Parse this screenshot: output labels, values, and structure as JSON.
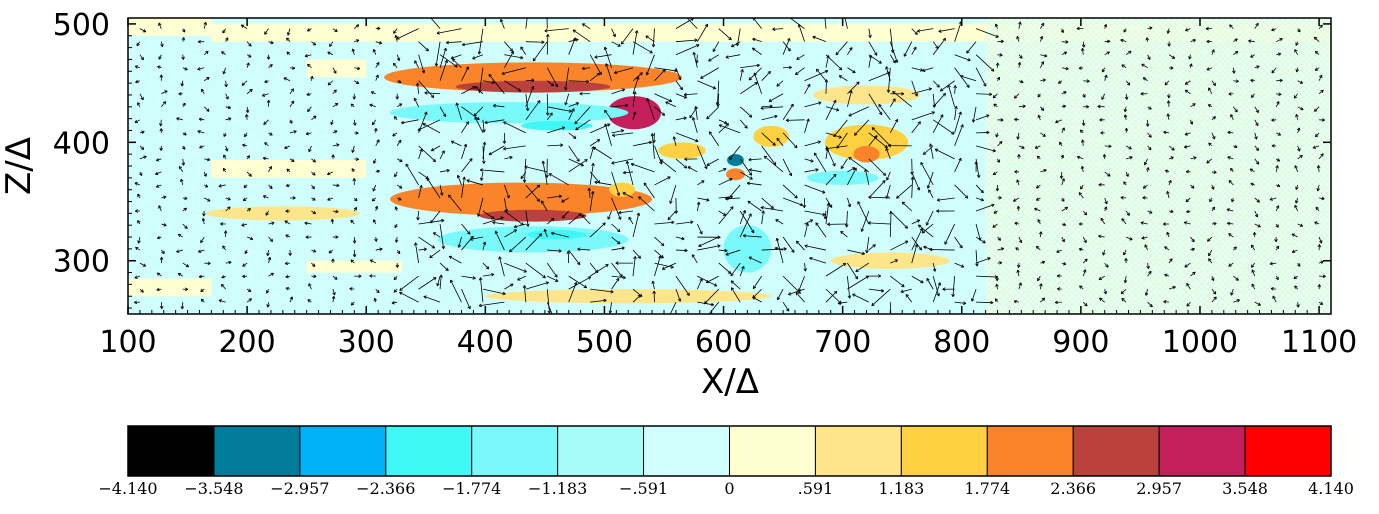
{
  "chart_data": {
    "type": "heatmap",
    "title": "",
    "xlabel": "X/Δ",
    "ylabel": "Z/Δ",
    "xlim": [
      100,
      1110
    ],
    "ylim": [
      255,
      505
    ],
    "xticks": [
      100,
      200,
      300,
      400,
      500,
      600,
      700,
      800,
      900,
      1000,
      1100
    ],
    "xtick_labels": [
      "100",
      "200",
      "300",
      "400",
      "500",
      "600",
      "700",
      "800",
      "900",
      "1000",
      "1100"
    ],
    "yticks": [
      300,
      400,
      500
    ],
    "ytick_labels": [
      "300",
      "400",
      "500"
    ],
    "overlay": "velocity vector field (arrows)",
    "colorbar": {
      "levels": [
        -4.14,
        -3.548,
        -2.957,
        -2.366,
        -1.774,
        -1.183,
        -0.591,
        0,
        0.591,
        1.183,
        1.774,
        2.366,
        2.957,
        3.548,
        4.14
      ],
      "labels": [
        "−4.140",
        "−3.548",
        "−2.957",
        "−2.366",
        "−1.774",
        "−1.183",
        "−.591",
        "0",
        ".591",
        "1.183",
        "1.774",
        "2.366",
        "2.957",
        "3.548",
        "4.140"
      ],
      "colors": [
        "#000000",
        "#007b99",
        "#00b2f7",
        "#3ff7f5",
        "#7af9fb",
        "#a6fbf9",
        "#d0fefd",
        "#fffdd2",
        "#fde58b",
        "#fed143",
        "#f9842a",
        "#ba413e",
        "#c41e5b",
        "#ff0000"
      ]
    },
    "features": [
      {
        "x": 440,
        "z": 455,
        "w": 250,
        "h": 25,
        "level": 10
      },
      {
        "x": 440,
        "z": 447,
        "w": 130,
        "h": 10,
        "level": 11
      },
      {
        "x": 525,
        "z": 425,
        "w": 45,
        "h": 28,
        "level": 12
      },
      {
        "x": 420,
        "z": 425,
        "w": 200,
        "h": 18,
        "level": 4
      },
      {
        "x": 460,
        "z": 414,
        "w": 60,
        "h": 8,
        "level": 3
      },
      {
        "x": 430,
        "z": 352,
        "w": 220,
        "h": 28,
        "level": 10
      },
      {
        "x": 440,
        "z": 338,
        "w": 90,
        "h": 10,
        "level": 11
      },
      {
        "x": 440,
        "z": 318,
        "w": 160,
        "h": 22,
        "level": 4
      },
      {
        "x": 460,
        "z": 322,
        "w": 50,
        "h": 8,
        "level": 3
      },
      {
        "x": 565,
        "z": 393,
        "w": 40,
        "h": 14,
        "level": 9
      },
      {
        "x": 515,
        "z": 360,
        "w": 22,
        "h": 12,
        "level": 9
      },
      {
        "x": 610,
        "z": 385,
        "w": 14,
        "h": 10,
        "level": 1
      },
      {
        "x": 610,
        "z": 373,
        "w": 16,
        "h": 10,
        "level": 10
      },
      {
        "x": 640,
        "z": 405,
        "w": 30,
        "h": 18,
        "level": 9
      },
      {
        "x": 720,
        "z": 400,
        "w": 70,
        "h": 30,
        "level": 9
      },
      {
        "x": 720,
        "z": 390,
        "w": 22,
        "h": 14,
        "level": 10
      },
      {
        "x": 620,
        "z": 310,
        "w": 40,
        "h": 40,
        "level": 4
      },
      {
        "x": 700,
        "z": 370,
        "w": 60,
        "h": 12,
        "level": 4
      },
      {
        "x": 720,
        "z": 440,
        "w": 90,
        "h": 16,
        "level": 8
      },
      {
        "x": 740,
        "z": 300,
        "w": 100,
        "h": 14,
        "level": 8
      },
      {
        "x": 520,
        "z": 270,
        "w": 240,
        "h": 12,
        "level": 8
      },
      {
        "x": 230,
        "z": 340,
        "w": 130,
        "h": 12,
        "level": 8
      }
    ]
  }
}
